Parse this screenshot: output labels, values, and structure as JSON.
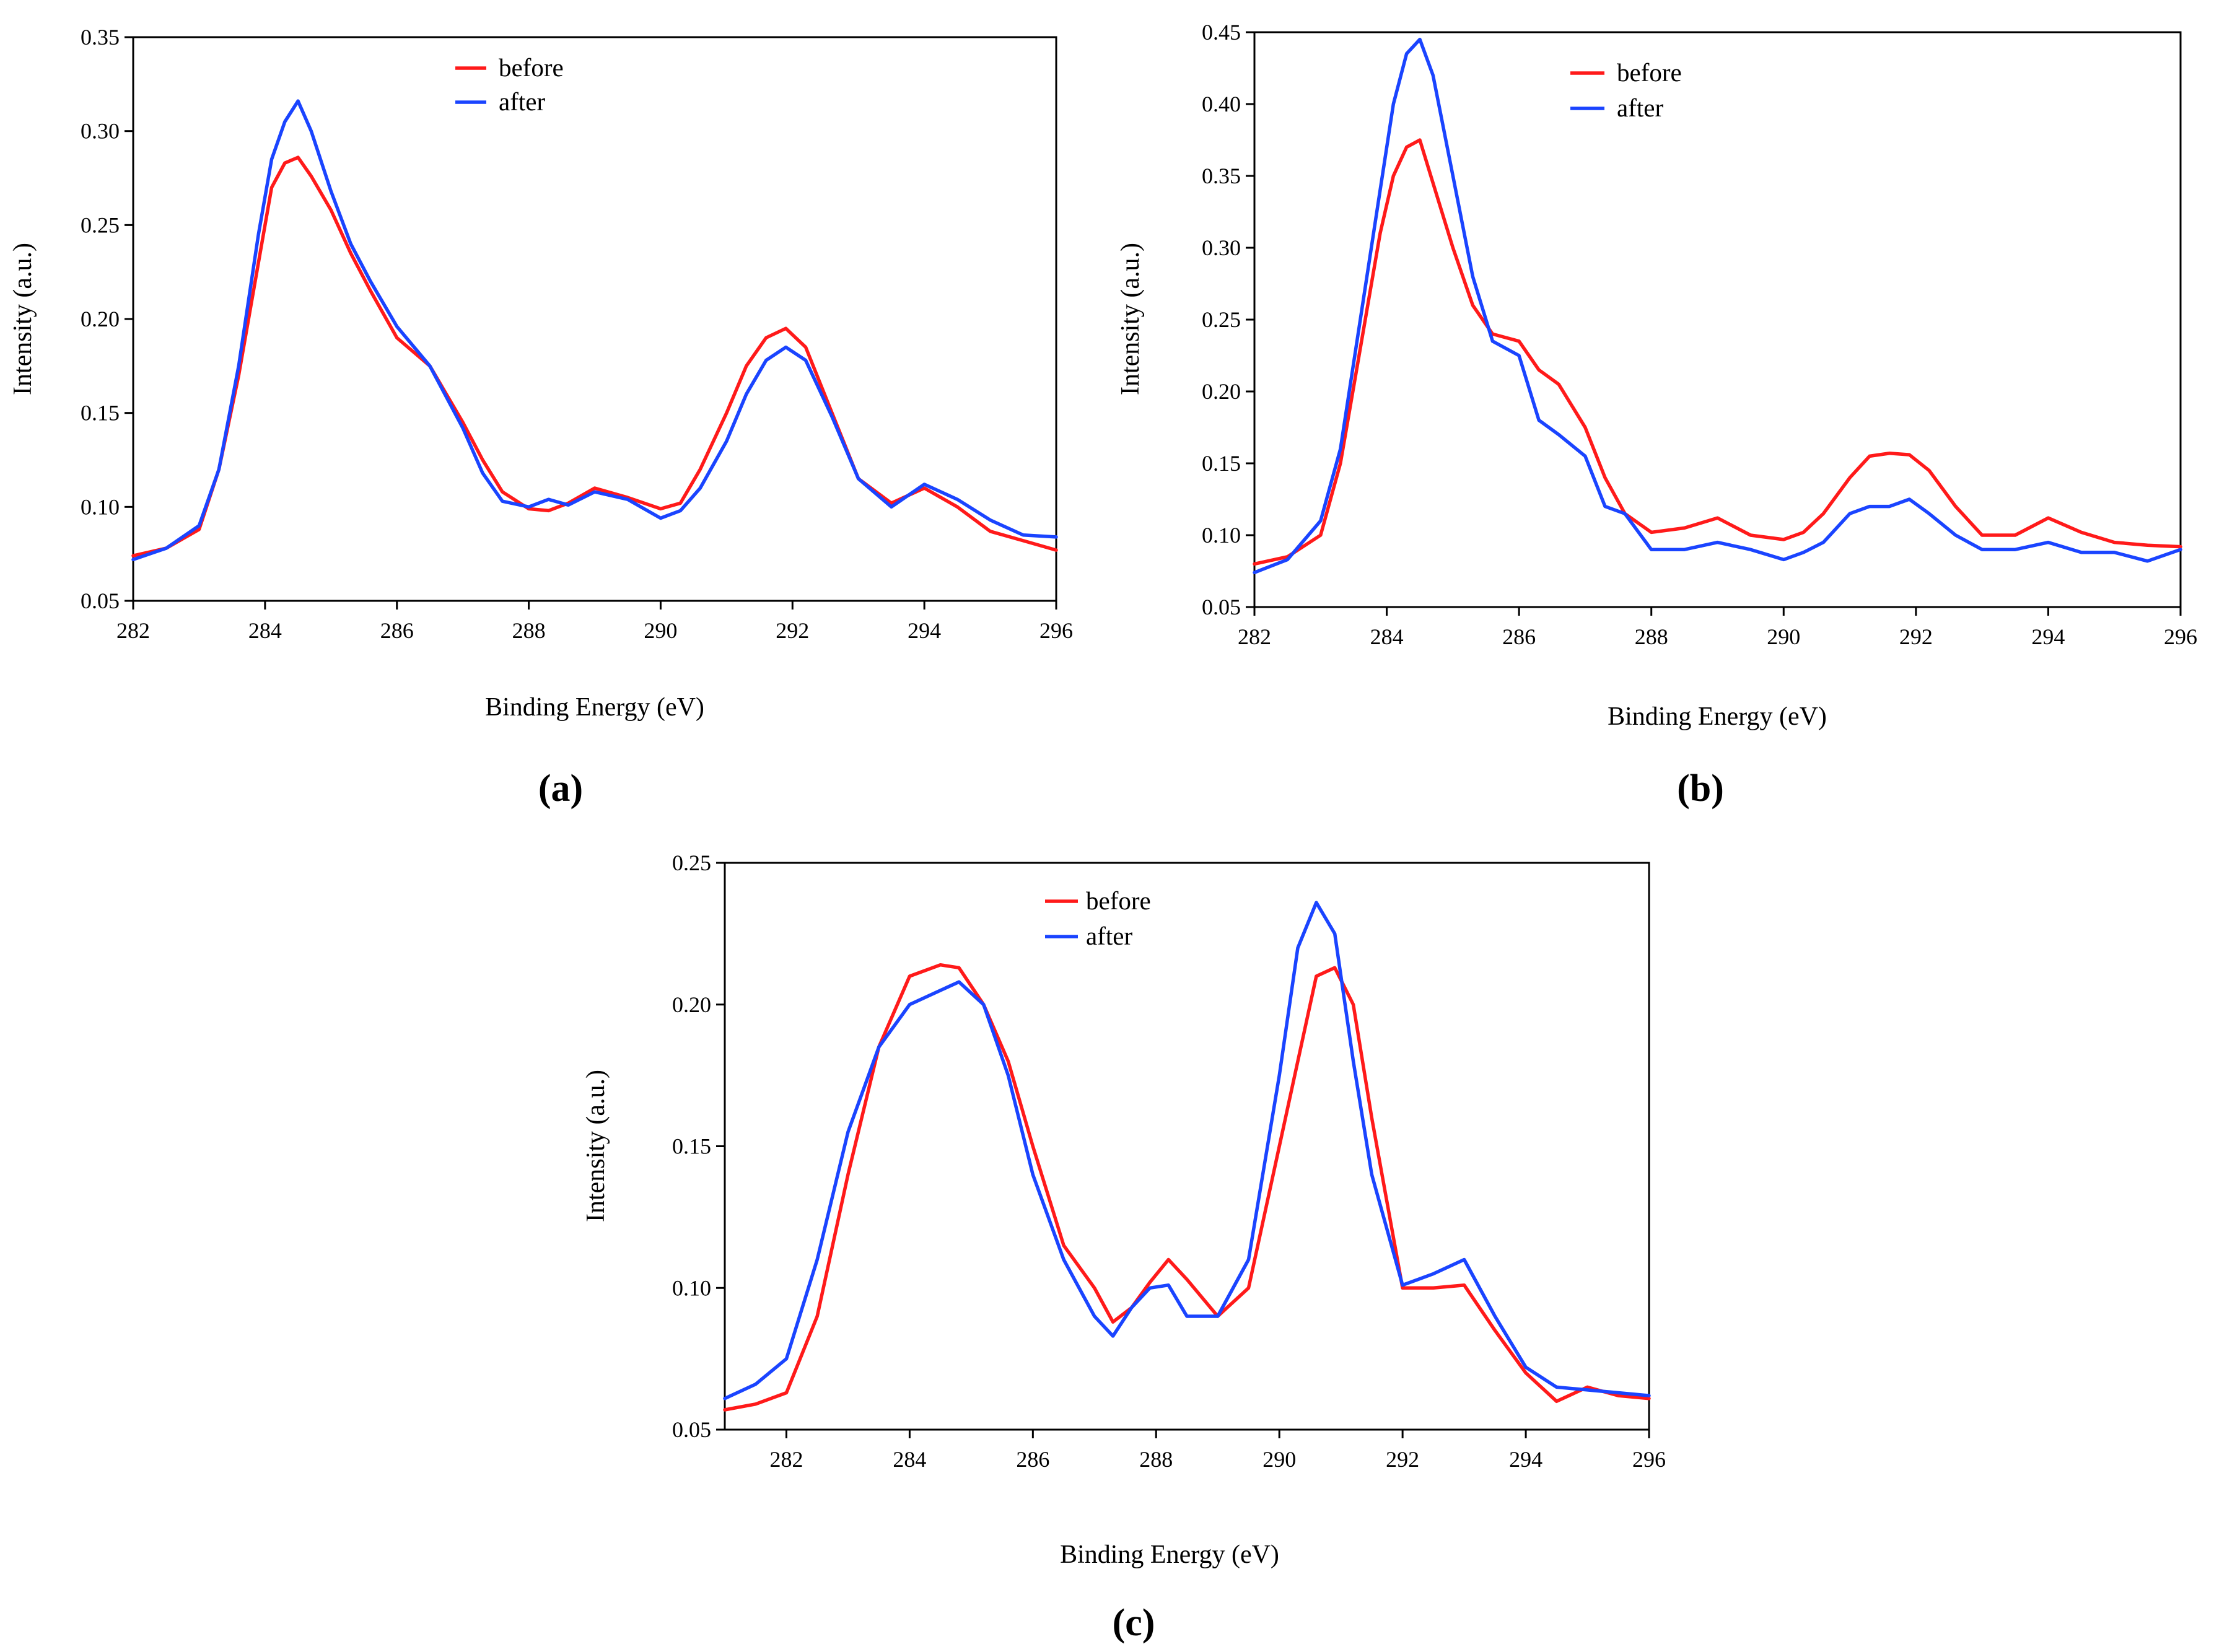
{
  "chart_data": [
    {
      "type": "line",
      "caption": "(a)",
      "xlabel": "Binding Energy (eV)",
      "ylabel": "Intensity (a.u.)",
      "xlim": [
        282,
        296
      ],
      "ylim": [
        0.05,
        0.35
      ],
      "xticks": [
        "282",
        "284",
        "286",
        "288",
        "290",
        "292",
        "294",
        "296"
      ],
      "yticks": [
        "0.05",
        "0.10",
        "0.15",
        "0.20",
        "0.25",
        "0.30",
        "0.35"
      ],
      "legend": "top-center",
      "series": [
        {
          "name": "before",
          "color": "#ff1a1a",
          "x": [
            282,
            282.5,
            283,
            283.3,
            283.6,
            283.9,
            284.1,
            284.3,
            284.5,
            284.7,
            285,
            285.3,
            285.6,
            286,
            286.5,
            287,
            287.3,
            287.6,
            288,
            288.3,
            288.6,
            289,
            289.5,
            290,
            290.3,
            290.6,
            291,
            291.3,
            291.6,
            291.9,
            292.2,
            292.6,
            293,
            293.5,
            294,
            294.5,
            295,
            295.5,
            296
          ],
          "y": [
            0.074,
            0.078,
            0.088,
            0.12,
            0.17,
            0.23,
            0.27,
            0.283,
            0.286,
            0.276,
            0.258,
            0.235,
            0.215,
            0.19,
            0.175,
            0.145,
            0.125,
            0.108,
            0.099,
            0.098,
            0.102,
            0.11,
            0.105,
            0.099,
            0.102,
            0.12,
            0.15,
            0.175,
            0.19,
            0.195,
            0.185,
            0.15,
            0.115,
            0.102,
            0.11,
            0.1,
            0.087,
            0.082,
            0.077
          ]
        },
        {
          "name": "after",
          "color": "#1a44ff",
          "x": [
            282,
            282.5,
            283,
            283.3,
            283.6,
            283.9,
            284.1,
            284.3,
            284.5,
            284.7,
            285,
            285.3,
            285.6,
            286,
            286.5,
            287,
            287.3,
            287.6,
            288,
            288.3,
            288.6,
            289,
            289.5,
            290,
            290.3,
            290.6,
            291,
            291.3,
            291.6,
            291.9,
            292.2,
            292.6,
            293,
            293.5,
            294,
            294.5,
            295,
            295.5,
            296
          ],
          "y": [
            0.072,
            0.078,
            0.09,
            0.12,
            0.175,
            0.245,
            0.285,
            0.305,
            0.316,
            0.3,
            0.268,
            0.24,
            0.22,
            0.196,
            0.175,
            0.142,
            0.118,
            0.103,
            0.1,
            0.104,
            0.101,
            0.108,
            0.104,
            0.094,
            0.098,
            0.11,
            0.135,
            0.16,
            0.178,
            0.185,
            0.178,
            0.148,
            0.115,
            0.1,
            0.112,
            0.104,
            0.093,
            0.085,
            0.084
          ]
        }
      ]
    },
    {
      "type": "line",
      "caption": "(b)",
      "xlabel": "Binding Energy (eV)",
      "ylabel": "Intensity (a.u.)",
      "xlim": [
        282,
        296
      ],
      "ylim": [
        0.05,
        0.45
      ],
      "xticks": [
        "282",
        "284",
        "286",
        "288",
        "290",
        "292",
        "294",
        "296"
      ],
      "yticks": [
        "0.05",
        "0.10",
        "0.15",
        "0.20",
        "0.25",
        "0.30",
        "0.35",
        "0.40",
        "0.45"
      ],
      "legend": "top-center",
      "series": [
        {
          "name": "before",
          "color": "#ff1a1a",
          "x": [
            282,
            282.5,
            283,
            283.3,
            283.6,
            283.9,
            284.1,
            284.3,
            284.5,
            284.7,
            285,
            285.3,
            285.6,
            286,
            286.3,
            286.6,
            287,
            287.3,
            287.6,
            288,
            288.5,
            289,
            289.5,
            290,
            290.3,
            290.6,
            291,
            291.3,
            291.6,
            291.9,
            292.2,
            292.6,
            293,
            293.5,
            294,
            294.5,
            295,
            295.5,
            296
          ],
          "y": [
            0.08,
            0.085,
            0.1,
            0.15,
            0.23,
            0.31,
            0.35,
            0.37,
            0.375,
            0.345,
            0.3,
            0.26,
            0.24,
            0.235,
            0.215,
            0.205,
            0.175,
            0.14,
            0.115,
            0.102,
            0.105,
            0.112,
            0.1,
            0.097,
            0.102,
            0.115,
            0.14,
            0.155,
            0.157,
            0.156,
            0.145,
            0.12,
            0.1,
            0.1,
            0.112,
            0.102,
            0.095,
            0.093,
            0.092
          ]
        },
        {
          "name": "after",
          "color": "#1a44ff",
          "x": [
            282,
            282.5,
            283,
            283.3,
            283.6,
            283.9,
            284.1,
            284.3,
            284.5,
            284.7,
            285,
            285.3,
            285.6,
            286,
            286.3,
            286.6,
            287,
            287.3,
            287.6,
            288,
            288.5,
            289,
            289.5,
            290,
            290.3,
            290.6,
            291,
            291.3,
            291.6,
            291.9,
            292.2,
            292.6,
            293,
            293.5,
            294,
            294.5,
            295,
            295.5,
            296
          ],
          "y": [
            0.074,
            0.083,
            0.11,
            0.16,
            0.25,
            0.34,
            0.4,
            0.435,
            0.445,
            0.42,
            0.35,
            0.28,
            0.235,
            0.225,
            0.18,
            0.17,
            0.155,
            0.12,
            0.115,
            0.09,
            0.09,
            0.095,
            0.09,
            0.083,
            0.088,
            0.095,
            0.115,
            0.12,
            0.12,
            0.125,
            0.115,
            0.1,
            0.09,
            0.09,
            0.095,
            0.088,
            0.088,
            0.082,
            0.09
          ]
        }
      ]
    },
    {
      "type": "line",
      "caption": "(c)",
      "xlabel": "Binding Energy (eV)",
      "ylabel": "Intensity (a.u.)",
      "xlim": [
        281,
        296
      ],
      "ylim": [
        0.05,
        0.25
      ],
      "xticks": [
        "282",
        "284",
        "286",
        "288",
        "290",
        "292",
        "294",
        "296"
      ],
      "yticks": [
        "0.05",
        "0.10",
        "0.15",
        "0.20",
        "0.25"
      ],
      "legend": "top-center",
      "series": [
        {
          "name": "before",
          "color": "#ff1a1a",
          "x": [
            281,
            281.5,
            282,
            282.5,
            283,
            283.5,
            284,
            284.5,
            284.8,
            285.2,
            285.6,
            286,
            286.5,
            287,
            287.3,
            287.6,
            287.9,
            288.2,
            288.5,
            289,
            289.5,
            290,
            290.3,
            290.6,
            290.9,
            291.2,
            291.5,
            292,
            292.5,
            293,
            293.5,
            294,
            294.5,
            295,
            295.5,
            296
          ],
          "y": [
            0.057,
            0.059,
            0.063,
            0.09,
            0.14,
            0.185,
            0.21,
            0.214,
            0.213,
            0.2,
            0.18,
            0.15,
            0.115,
            0.1,
            0.088,
            0.093,
            0.102,
            0.11,
            0.103,
            0.09,
            0.1,
            0.15,
            0.18,
            0.21,
            0.213,
            0.2,
            0.16,
            0.1,
            0.1,
            0.101,
            0.085,
            0.07,
            0.06,
            0.065,
            0.062,
            0.061
          ]
        },
        {
          "name": "after",
          "color": "#1a44ff",
          "x": [
            281,
            281.5,
            282,
            282.5,
            283,
            283.5,
            284,
            284.5,
            284.8,
            285.2,
            285.6,
            286,
            286.5,
            287,
            287.3,
            287.6,
            287.9,
            288.2,
            288.5,
            289,
            289.5,
            290,
            290.3,
            290.6,
            290.9,
            291.2,
            291.5,
            292,
            292.5,
            293,
            293.5,
            294,
            294.5,
            295,
            295.5,
            296
          ],
          "y": [
            0.061,
            0.066,
            0.075,
            0.11,
            0.155,
            0.185,
            0.2,
            0.205,
            0.208,
            0.2,
            0.175,
            0.14,
            0.11,
            0.09,
            0.083,
            0.093,
            0.1,
            0.101,
            0.09,
            0.09,
            0.11,
            0.175,
            0.22,
            0.236,
            0.225,
            0.18,
            0.14,
            0.101,
            0.105,
            0.11,
            0.09,
            0.072,
            0.065,
            0.064,
            0.063,
            0.062
          ]
        }
      ]
    }
  ]
}
